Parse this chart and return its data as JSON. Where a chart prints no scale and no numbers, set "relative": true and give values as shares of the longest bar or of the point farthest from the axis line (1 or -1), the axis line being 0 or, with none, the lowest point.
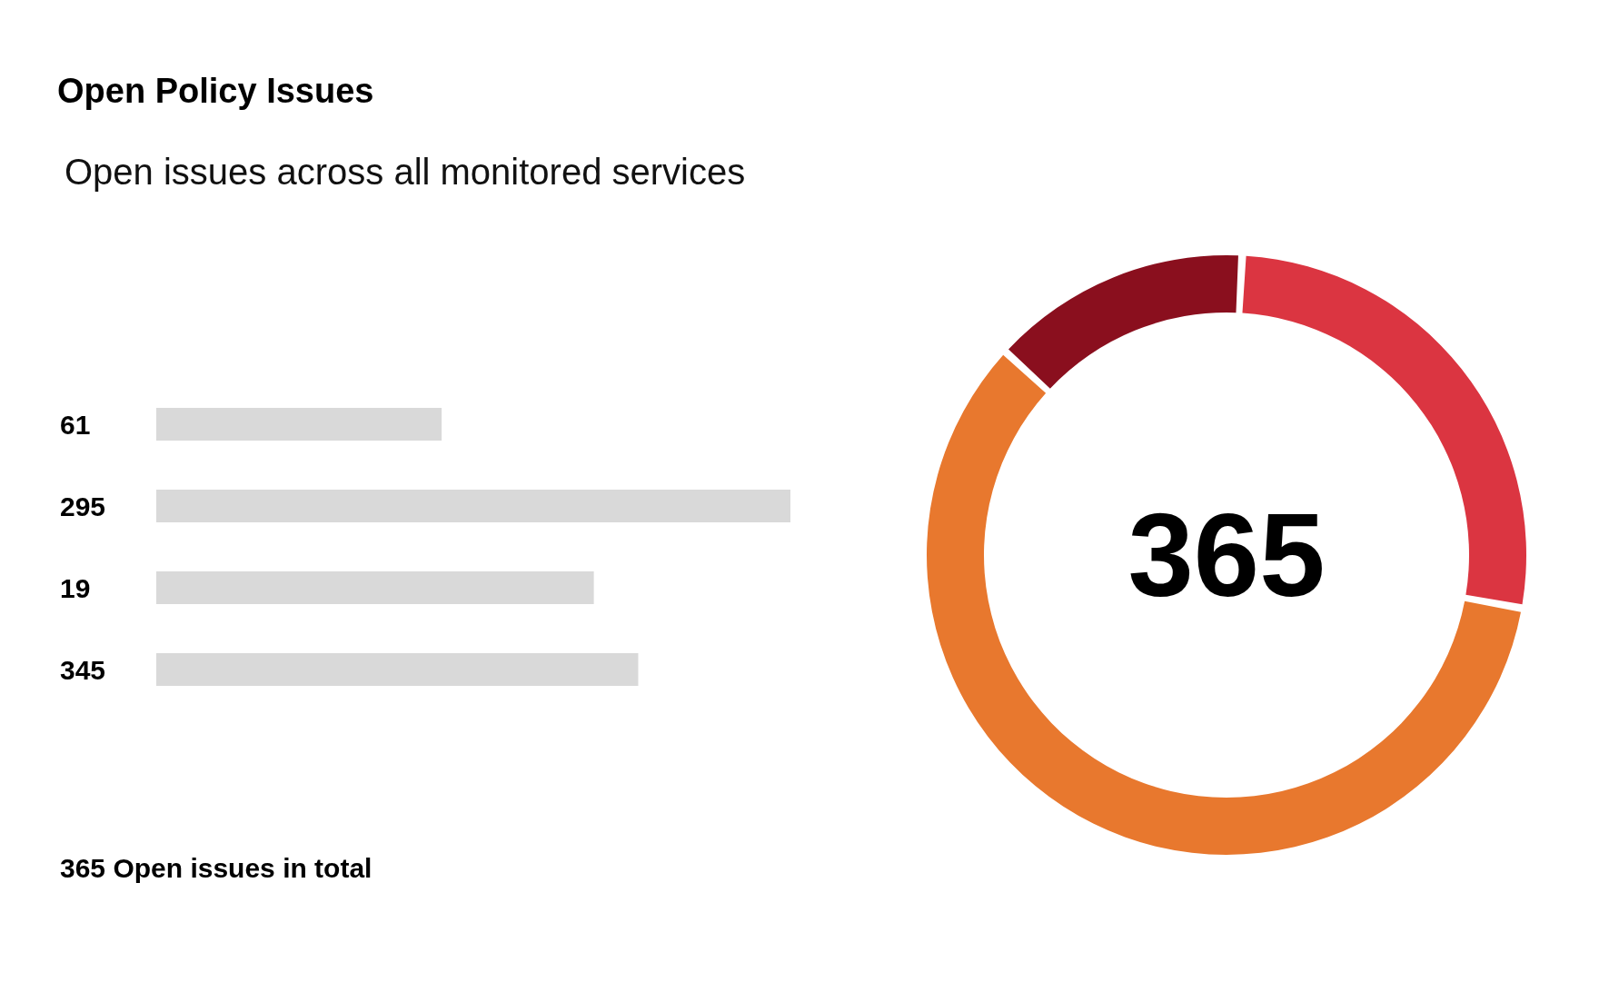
{
  "chart_data": [
    {
      "type": "bar",
      "title": "Open Policy Issues",
      "subtitle": "Open issues across all monitored services",
      "orientation": "horizontal",
      "relative": true,
      "categories": [
        "61",
        "295",
        "19",
        "345"
      ],
      "values": [
        0.45,
        1,
        0.69,
        0.76
      ],
      "color": "#d9d9d9",
      "annotations": [
        "365 Open issues in total"
      ]
    },
    {
      "type": "donut",
      "categories": [
        null,
        null,
        null
      ],
      "values": [
        27,
        59,
        14
      ],
      "colors": [
        "#db3541",
        "#e8782e",
        "#8a0f1e"
      ],
      "annotations": [
        "365"
      ]
    }
  ]
}
